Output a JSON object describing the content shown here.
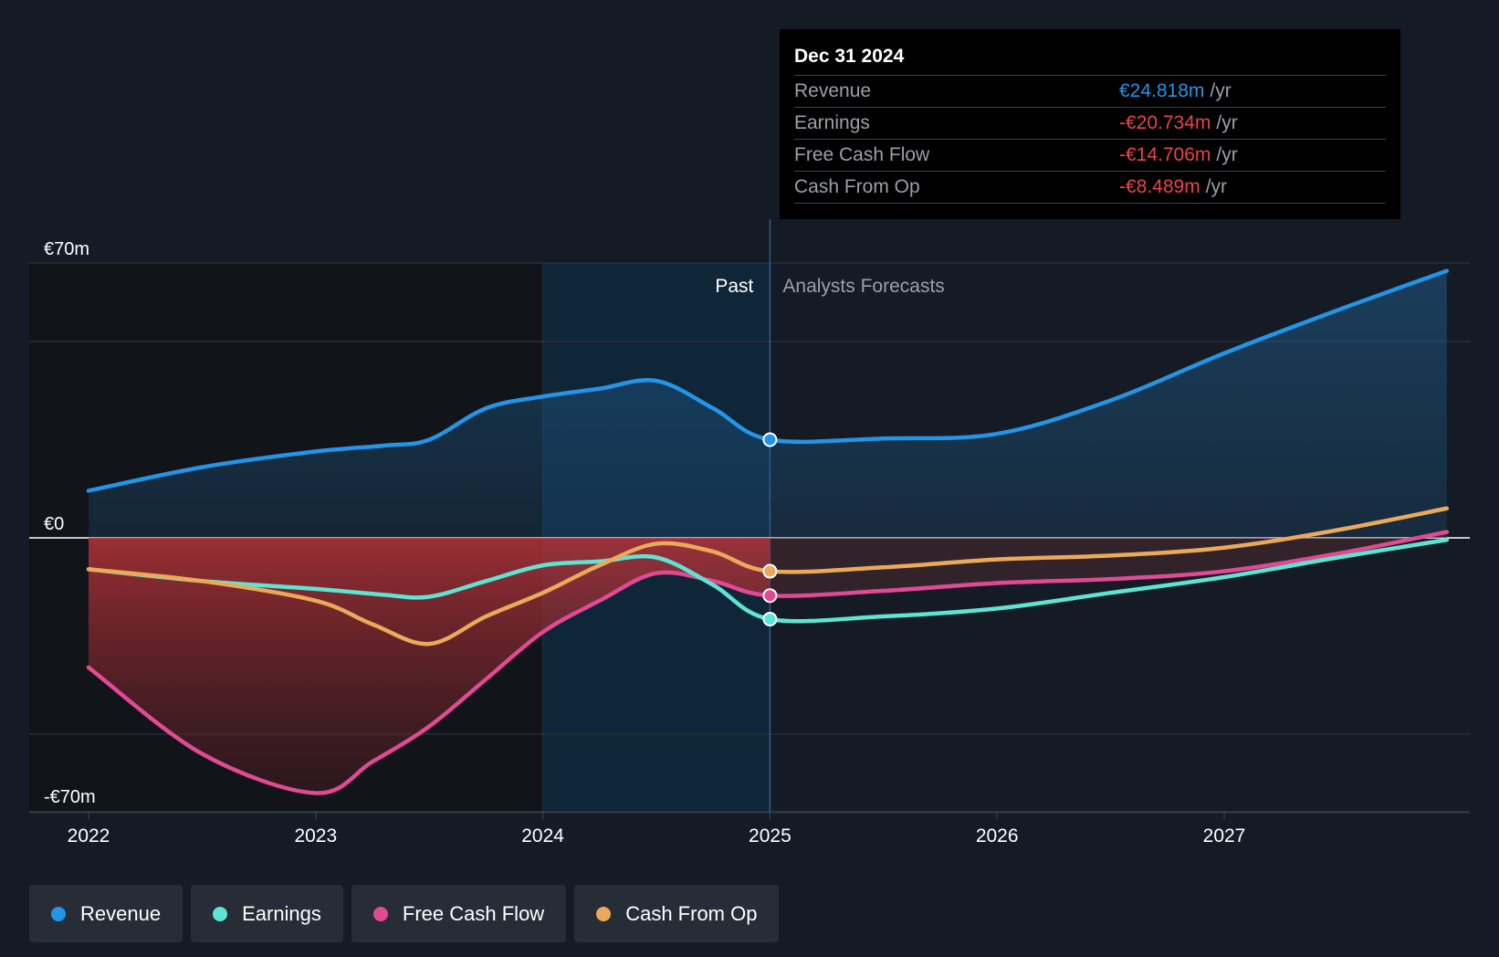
{
  "chart_data": {
    "type": "line",
    "title": "",
    "xlabel": "",
    "ylabel": "",
    "x_ticks": [
      "2022",
      "2023",
      "2024",
      "2025",
      "2026",
      "2027"
    ],
    "y_ticks": [
      {
        "value": 70,
        "label": "€70m"
      },
      {
        "value": 0,
        "label": "€0"
      },
      {
        "value": -70,
        "label": "-€70m"
      }
    ],
    "ylim": [
      -70,
      70
    ],
    "xlim": [
      2021.75,
      2027.98
    ],
    "past_label": "Past",
    "forecast_label": "Analysts Forecasts",
    "divider_x": 2025.0,
    "series": [
      {
        "name": "Revenue",
        "color": "#2394e6",
        "points": [
          [
            2022.0,
            12
          ],
          [
            2022.5,
            18
          ],
          [
            2023.0,
            22
          ],
          [
            2023.3,
            23.5
          ],
          [
            2023.5,
            25
          ],
          [
            2023.75,
            33
          ],
          [
            2024.0,
            36
          ],
          [
            2024.25,
            38
          ],
          [
            2024.5,
            40
          ],
          [
            2024.75,
            33
          ],
          [
            2025.0,
            25
          ],
          [
            2025.5,
            25.3
          ],
          [
            2026.0,
            26.5
          ],
          [
            2026.5,
            35
          ],
          [
            2027.0,
            47
          ],
          [
            2027.5,
            58
          ],
          [
            2027.98,
            68
          ]
        ]
      },
      {
        "name": "Earnings",
        "color": "#5ce5d4",
        "points": [
          [
            2022.0,
            -8
          ],
          [
            2022.5,
            -11
          ],
          [
            2023.0,
            -13
          ],
          [
            2023.3,
            -14.5
          ],
          [
            2023.5,
            -15
          ],
          [
            2023.75,
            -11
          ],
          [
            2024.0,
            -7
          ],
          [
            2024.25,
            -6
          ],
          [
            2024.5,
            -5
          ],
          [
            2024.75,
            -12
          ],
          [
            2025.0,
            -20.7
          ],
          [
            2025.5,
            -20
          ],
          [
            2026.0,
            -18
          ],
          [
            2026.5,
            -14
          ],
          [
            2027.0,
            -10
          ],
          [
            2027.5,
            -5
          ],
          [
            2027.98,
            -0.5
          ]
        ]
      },
      {
        "name": "Free Cash Flow",
        "color": "#e04a94",
        "points": [
          [
            2022.0,
            -33
          ],
          [
            2022.5,
            -55
          ],
          [
            2023.0,
            -65
          ],
          [
            2023.25,
            -57
          ],
          [
            2023.5,
            -48
          ],
          [
            2023.75,
            -36
          ],
          [
            2024.0,
            -24
          ],
          [
            2024.25,
            -16
          ],
          [
            2024.5,
            -9
          ],
          [
            2024.75,
            -11
          ],
          [
            2025.0,
            -14.7
          ],
          [
            2025.5,
            -13.5
          ],
          [
            2026.0,
            -11.5
          ],
          [
            2026.5,
            -10.5
          ],
          [
            2027.0,
            -8.5
          ],
          [
            2027.5,
            -4
          ],
          [
            2027.98,
            1.5
          ]
        ]
      },
      {
        "name": "Cash From Op",
        "color": "#eba95a",
        "points": [
          [
            2022.0,
            -8
          ],
          [
            2022.5,
            -11
          ],
          [
            2023.0,
            -16
          ],
          [
            2023.25,
            -22
          ],
          [
            2023.5,
            -27
          ],
          [
            2023.75,
            -20
          ],
          [
            2024.0,
            -14
          ],
          [
            2024.25,
            -7
          ],
          [
            2024.5,
            -1.5
          ],
          [
            2024.75,
            -3.5
          ],
          [
            2025.0,
            -8.5
          ],
          [
            2025.5,
            -7.5
          ],
          [
            2026.0,
            -5.5
          ],
          [
            2026.5,
            -4.5
          ],
          [
            2027.0,
            -2.5
          ],
          [
            2027.5,
            2
          ],
          [
            2027.98,
            7.5
          ]
        ]
      }
    ]
  },
  "tooltip": {
    "date": "Dec 31 2024",
    "unit": "/yr",
    "rows": [
      {
        "label": "Revenue",
        "value": "€24.818m",
        "color": "#2394e6"
      },
      {
        "label": "Earnings",
        "value": "-€20.734m",
        "color": "#e8444a"
      },
      {
        "label": "Free Cash Flow",
        "value": "-€14.706m",
        "color": "#e8444a"
      },
      {
        "label": "Cash From Op",
        "value": "-€8.489m",
        "color": "#e8444a"
      }
    ]
  },
  "legend": [
    {
      "label": "Revenue",
      "color": "#2394e6"
    },
    {
      "label": "Earnings",
      "color": "#5ce5d4"
    },
    {
      "label": "Free Cash Flow",
      "color": "#e04a94"
    },
    {
      "label": "Cash From Op",
      "color": "#eba95a"
    }
  ]
}
